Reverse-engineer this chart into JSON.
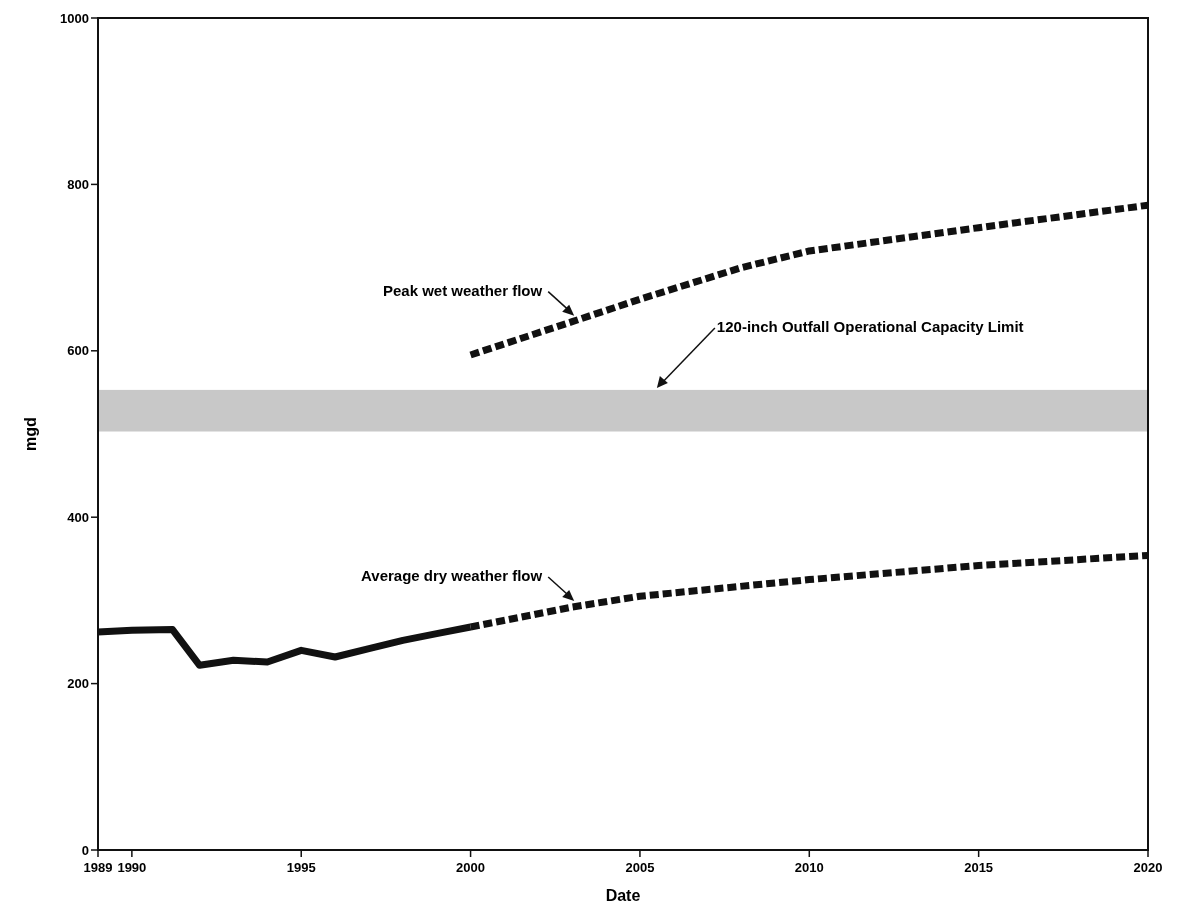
{
  "chart_data": {
    "type": "line",
    "xlabel": "Date",
    "ylabel": "mgd",
    "xlim": [
      1989,
      2020
    ],
    "xticks": [
      1989,
      1990,
      1995,
      2000,
      2005,
      2010,
      2015,
      2020
    ],
    "ylim": [
      0,
      1000
    ],
    "yticks": [
      0,
      200,
      400,
      600,
      800,
      1000
    ],
    "grid": false,
    "series": [
      {
        "color": "#111111",
        "line_style": "solid",
        "x": [
          1989,
          1990,
          1991.2,
          1992,
          1993,
          1994,
          1995,
          1996,
          1997,
          1998,
          1999,
          2000
        ],
        "values": [
          262,
          264,
          265,
          222,
          228,
          226,
          240,
          232,
          242,
          252,
          260,
          268
        ]
      },
      {
        "name": "Average dry weather flow",
        "color": "#111111",
        "line_style": "dashed",
        "x": [
          2000,
          2003,
          2005,
          2010,
          2015,
          2020
        ],
        "values": [
          268,
          292,
          305,
          325,
          342,
          354
        ]
      },
      {
        "name": "Peak wet weather flow",
        "color": "#111111",
        "line_style": "dashed",
        "x": [
          2000,
          2003,
          2005,
          2008,
          2010,
          2015,
          2020
        ],
        "values": [
          595,
          635,
          662,
          700,
          720,
          748,
          775
        ]
      }
    ],
    "bands": [
      {
        "axis": "y",
        "from": 503,
        "to": 553,
        "label": "120-inch Outfall Operational Capacity Limit",
        "color": "#c8c8c8"
      }
    ]
  }
}
